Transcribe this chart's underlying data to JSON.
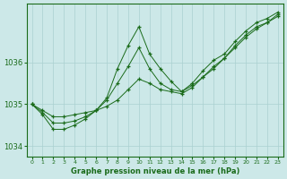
{
  "xlabel": "Graphe pression niveau de la mer (hPa)",
  "bg_color": "#cce8e8",
  "plot_bg_color": "#cce8e8",
  "line_color": "#1a6b1a",
  "grid_color": "#aad0d0",
  "tick_label_color": "#1a6b1a",
  "xlabel_color": "#1a6b1a",
  "ylim": [
    1033.75,
    1037.4
  ],
  "xlim": [
    -0.5,
    23.5
  ],
  "yticks": [
    1034,
    1035,
    1036
  ],
  "xticks": [
    0,
    1,
    2,
    3,
    4,
    5,
    6,
    7,
    8,
    9,
    10,
    11,
    12,
    13,
    14,
    15,
    16,
    17,
    18,
    19,
    20,
    21,
    22,
    23
  ],
  "series": [
    [
      1035.0,
      1034.85,
      1034.7,
      1034.7,
      1034.75,
      1034.8,
      1034.85,
      1034.95,
      1035.1,
      1035.35,
      1035.6,
      1035.5,
      1035.35,
      1035.3,
      1035.25,
      1035.4,
      1035.65,
      1035.85,
      1036.1,
      1036.35,
      1036.6,
      1036.8,
      1036.95,
      1037.1
    ],
    [
      1035.0,
      1034.8,
      1034.55,
      1034.55,
      1034.6,
      1034.7,
      1034.85,
      1035.1,
      1035.5,
      1035.9,
      1036.35,
      1035.85,
      1035.5,
      1035.35,
      1035.3,
      1035.45,
      1035.65,
      1035.9,
      1036.1,
      1036.4,
      1036.65,
      1036.85,
      1036.95,
      1037.15
    ],
    [
      1035.0,
      1034.75,
      1034.4,
      1034.4,
      1034.5,
      1034.65,
      1034.85,
      1035.15,
      1035.85,
      1036.4,
      1036.85,
      1036.2,
      1035.85,
      1035.55,
      1035.3,
      1035.5,
      1035.8,
      1036.05,
      1036.2,
      1036.5,
      1036.75,
      1036.95,
      1037.05,
      1037.2
    ]
  ]
}
